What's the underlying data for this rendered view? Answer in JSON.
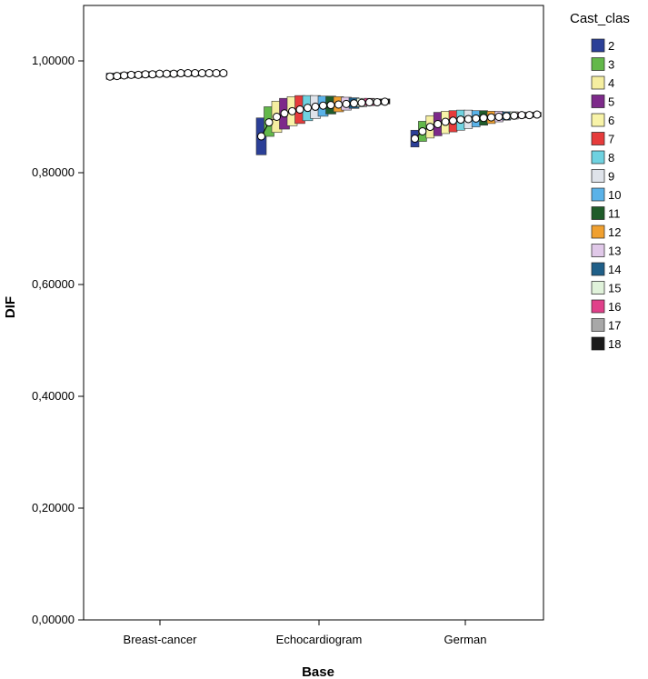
{
  "chart_data": {
    "type": "range-box",
    "title": "",
    "xlabel": "Base",
    "ylabel": "DIF",
    "ylim": [
      0,
      1.1
    ],
    "yticks": [
      0.0,
      0.2,
      0.4,
      0.6,
      0.8,
      1.0
    ],
    "ytick_labels": [
      "0,00000",
      "0,20000",
      "0,40000",
      "0,60000",
      "0,80000",
      "1,00000"
    ],
    "grid": false,
    "legend_position": "right",
    "legend_title": "Cast_clas",
    "categories": [
      "Breast-cancer",
      "Echocardiogram",
      "German"
    ],
    "series": [
      {
        "name": "2",
        "color": "#2b3f97",
        "ranges": [
          [
            0.967,
            0.978
          ],
          [
            0.832,
            0.898
          ],
          [
            0.846,
            0.876
          ]
        ],
        "medians": [
          0.972,
          0.865,
          0.861
        ]
      },
      {
        "name": "3",
        "color": "#63b84a",
        "ranges": [
          [
            0.968,
            0.978
          ],
          [
            0.865,
            0.918
          ],
          [
            0.856,
            0.892
          ]
        ],
        "medians": [
          0.973,
          0.89,
          0.874
        ]
      },
      {
        "name": "4",
        "color": "#f5eea0",
        "ranges": [
          [
            0.969,
            0.979
          ],
          [
            0.872,
            0.928
          ],
          [
            0.862,
            0.902
          ]
        ],
        "medians": [
          0.974,
          0.9,
          0.882
        ]
      },
      {
        "name": "5",
        "color": "#7d2a8a",
        "ranges": [
          [
            0.97,
            0.98
          ],
          [
            0.878,
            0.933
          ],
          [
            0.866,
            0.908
          ]
        ],
        "medians": [
          0.975,
          0.906,
          0.887
        ]
      },
      {
        "name": "6",
        "color": "#f8f3a8",
        "ranges": [
          [
            0.97,
            0.98
          ],
          [
            0.884,
            0.936
          ],
          [
            0.87,
            0.91
          ]
        ],
        "medians": [
          0.975,
          0.91,
          0.891
        ]
      },
      {
        "name": "7",
        "color": "#e63b3b",
        "ranges": [
          [
            0.971,
            0.981
          ],
          [
            0.888,
            0.938
          ],
          [
            0.873,
            0.911
          ]
        ],
        "medians": [
          0.976,
          0.913,
          0.893
        ]
      },
      {
        "name": "8",
        "color": "#6fd2e0",
        "ranges": [
          [
            0.971,
            0.981
          ],
          [
            0.893,
            0.938
          ],
          [
            0.876,
            0.912
          ]
        ],
        "medians": [
          0.976,
          0.916,
          0.895
        ]
      },
      {
        "name": "9",
        "color": "#dfe3ea",
        "ranges": [
          [
            0.972,
            0.981
          ],
          [
            0.897,
            0.938
          ],
          [
            0.879,
            0.912
          ]
        ],
        "medians": [
          0.977,
          0.918,
          0.896
        ]
      },
      {
        "name": "10",
        "color": "#5ab2e8",
        "ranges": [
          [
            0.972,
            0.981
          ],
          [
            0.901,
            0.937
          ],
          [
            0.882,
            0.911
          ]
        ],
        "medians": [
          0.977,
          0.92,
          0.897
        ]
      },
      {
        "name": "11",
        "color": "#1f5c2a",
        "ranges": [
          [
            0.972,
            0.982
          ],
          [
            0.905,
            0.937
          ],
          [
            0.885,
            0.911
          ]
        ],
        "medians": [
          0.977,
          0.921,
          0.898
        ]
      },
      {
        "name": "12",
        "color": "#f0a030",
        "ranges": [
          [
            0.973,
            0.982
          ],
          [
            0.909,
            0.936
          ],
          [
            0.888,
            0.91
          ]
        ],
        "medians": [
          0.978,
          0.922,
          0.899
        ]
      },
      {
        "name": "13",
        "color": "#e0c8e8",
        "ranges": [
          [
            0.973,
            0.982
          ],
          [
            0.912,
            0.935
          ],
          [
            0.891,
            0.91
          ]
        ],
        "medians": [
          0.978,
          0.923,
          0.9
        ]
      },
      {
        "name": "14",
        "color": "#1f5f88",
        "ranges": [
          [
            0.973,
            0.982
          ],
          [
            0.915,
            0.934
          ],
          [
            0.894,
            0.909
          ]
        ],
        "medians": [
          0.978,
          0.924,
          0.901
        ]
      },
      {
        "name": "15",
        "color": "#e0f2da",
        "ranges": [
          [
            0.974,
            0.982
          ],
          [
            0.918,
            0.933
          ],
          [
            0.896,
            0.909
          ]
        ],
        "medians": [
          0.978,
          0.925,
          0.902
        ]
      },
      {
        "name": "16",
        "color": "#e0408a",
        "ranges": [
          [
            0.974,
            0.982
          ],
          [
            0.92,
            0.933
          ],
          [
            0.898,
            0.908
          ]
        ],
        "medians": [
          0.978,
          0.926,
          0.903
        ]
      },
      {
        "name": "17",
        "color": "#a8a8a8",
        "ranges": [
          [
            0.974,
            0.982
          ],
          [
            0.922,
            0.932
          ],
          [
            0.899,
            0.908
          ]
        ],
        "medians": [
          0.978,
          0.926,
          0.903
        ]
      },
      {
        "name": "18",
        "color": "#1a1a1a",
        "ranges": [
          [
            0.974,
            0.982
          ],
          [
            0.923,
            0.932
          ],
          [
            0.9,
            0.908
          ]
        ],
        "medians": [
          0.978,
          0.927,
          0.904
        ]
      }
    ]
  }
}
